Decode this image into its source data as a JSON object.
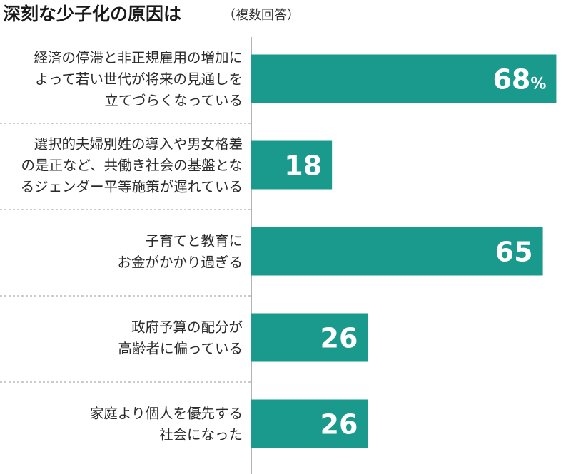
{
  "chart_data": {
    "type": "bar",
    "orientation": "horizontal",
    "title": "深刻な少子化の原因は",
    "subtitle": "（複数回答）",
    "unit": "%",
    "xlim": [
      0,
      70
    ],
    "categories": [
      [
        "経済の停滞と非正規雇用の増加に",
        "よって若い世代が将来の見通しを",
        "立てづらくなっている"
      ],
      [
        "選択的夫婦別姓の導入や男女格差",
        "の是正など、共働き社会の基盤とな",
        "るジェンダー平等施策が遅れている"
      ],
      [
        "子育てと教育に",
        "お金がかかり過ぎる"
      ],
      [
        "政府予算の配分が",
        "高齢者に偏っている"
      ],
      [
        "家庭より個人を優先する",
        "社会になった"
      ]
    ],
    "values": [
      68,
      18,
      65,
      26,
      26
    ],
    "value_labels": [
      "68",
      "18",
      "65",
      "26",
      "26"
    ],
    "bar_color": "#1a9a8c",
    "grid": false
  }
}
